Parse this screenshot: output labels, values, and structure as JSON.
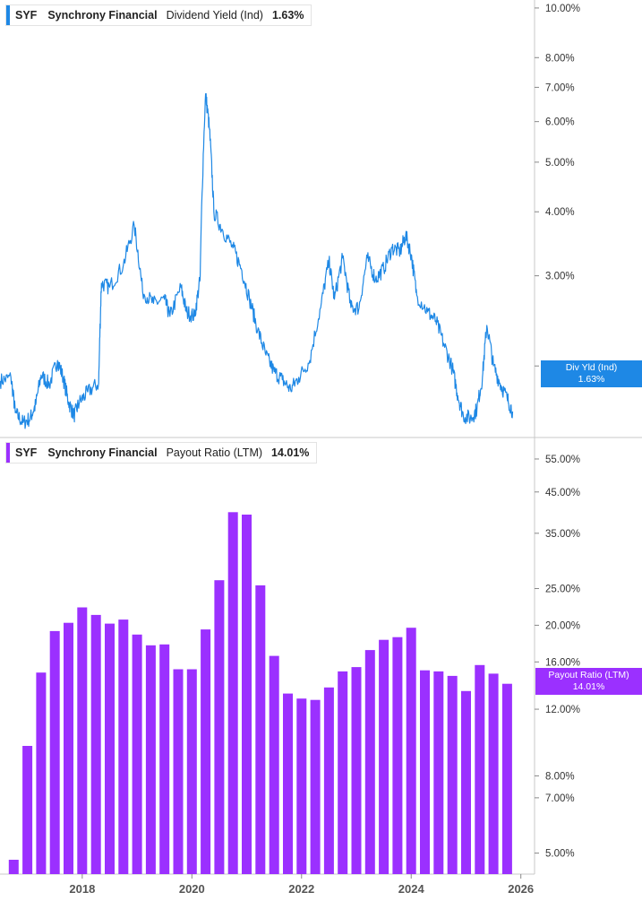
{
  "colors": {
    "line": "#1E88E5",
    "bar": "#9B30FF",
    "divider": "#c8c8c8",
    "axis_text": "#333333",
    "tick": "#888888"
  },
  "legend_top": {
    "ticker": "SYF",
    "name": "Synchrony Financial",
    "metric": "Dividend Yield (Ind)",
    "value": "1.63%"
  },
  "legend_bottom": {
    "ticker": "SYF",
    "name": "Synchrony Financial",
    "metric": "Payout Ratio (LTM)",
    "value": "14.01%"
  },
  "flag_top": {
    "label": "Div Yld (Ind)",
    "value": "1.63%"
  },
  "flag_bottom": {
    "label": "Payout Ratio (LTM)",
    "value": "14.01%"
  },
  "chart_data": [
    {
      "type": "line",
      "scale": "log",
      "y_tick_labels": [
        "10.00%",
        "8.00%",
        "7.00%",
        "6.00%",
        "5.00%",
        "4.00%",
        "3.00%",
        "2.00%"
      ],
      "y_ticks": [
        10,
        8,
        7,
        6,
        5,
        4,
        3,
        2
      ],
      "ylim": [
        1.45,
        10.2
      ],
      "x_range": [
        2016.5,
        2026.25
      ],
      "series": [
        {
          "name": "Dividend Yield (Ind)",
          "points": [
            [
              2016.5,
              1.87
            ],
            [
              2016.7,
              1.9
            ],
            [
              2016.78,
              1.62
            ],
            [
              2016.92,
              1.55
            ],
            [
              2017.05,
              1.58
            ],
            [
              2017.15,
              1.68
            ],
            [
              2017.25,
              1.92
            ],
            [
              2017.4,
              1.84
            ],
            [
              2017.55,
              2.05
            ],
            [
              2017.65,
              1.9
            ],
            [
              2017.75,
              1.7
            ],
            [
              2017.85,
              1.6
            ],
            [
              2017.95,
              1.7
            ],
            [
              2018.1,
              1.78
            ],
            [
              2018.3,
              1.85
            ],
            [
              2018.35,
              2.9
            ],
            [
              2018.5,
              2.85
            ],
            [
              2018.75,
              3.15
            ],
            [
              2018.95,
              3.75
            ],
            [
              2019.1,
              2.8
            ],
            [
              2019.3,
              2.65
            ],
            [
              2019.5,
              2.7
            ],
            [
              2019.6,
              2.5
            ],
            [
              2019.8,
              2.85
            ],
            [
              2019.9,
              2.55
            ],
            [
              2020.05,
              2.5
            ],
            [
              2020.15,
              2.95
            ],
            [
              2020.25,
              6.8
            ],
            [
              2020.32,
              5.8
            ],
            [
              2020.4,
              4.0
            ],
            [
              2020.55,
              3.7
            ],
            [
              2020.75,
              3.4
            ],
            [
              2020.9,
              3.1
            ],
            [
              2021.05,
              2.7
            ],
            [
              2021.2,
              2.35
            ],
            [
              2021.35,
              2.1
            ],
            [
              2021.5,
              1.95
            ],
            [
              2021.65,
              1.88
            ],
            [
              2021.8,
              1.8
            ],
            [
              2021.95,
              1.9
            ],
            [
              2022.15,
              2.05
            ],
            [
              2022.35,
              2.6
            ],
            [
              2022.5,
              3.2
            ],
            [
              2022.6,
              2.7
            ],
            [
              2022.75,
              3.25
            ],
            [
              2022.9,
              2.6
            ],
            [
              2023.05,
              2.6
            ],
            [
              2023.2,
              3.25
            ],
            [
              2023.35,
              2.95
            ],
            [
              2023.5,
              3.1
            ],
            [
              2023.65,
              3.4
            ],
            [
              2023.8,
              3.35
            ],
            [
              2023.9,
              3.6
            ],
            [
              2024.0,
              3.3
            ],
            [
              2024.1,
              2.75
            ],
            [
              2024.3,
              2.55
            ],
            [
              2024.45,
              2.45
            ],
            [
              2024.6,
              2.2
            ],
            [
              2024.75,
              1.98
            ],
            [
              2024.85,
              1.75
            ],
            [
              2024.95,
              1.6
            ],
            [
              2025.1,
              1.58
            ],
            [
              2025.2,
              1.65
            ],
            [
              2025.3,
              1.9
            ],
            [
              2025.38,
              2.4
            ],
            [
              2025.5,
              2.0
            ],
            [
              2025.62,
              1.85
            ],
            [
              2025.75,
              1.73
            ],
            [
              2025.85,
              1.63
            ]
          ]
        }
      ]
    },
    {
      "type": "bar",
      "scale": "log",
      "y_tick_labels": [
        "55.00%",
        "45.00%",
        "35.00%",
        "25.00%",
        "20.00%",
        "16.00%",
        "12.00%",
        "8.00%",
        "7.00%",
        "5.00%"
      ],
      "y_ticks": [
        55,
        45,
        35,
        25,
        20,
        16,
        12,
        8,
        7,
        5
      ],
      "ylim": [
        4.4,
        62
      ],
      "x_tick_labels": [
        "2018",
        "2020",
        "2022",
        "2024",
        "2026"
      ],
      "x_ticks": [
        2018,
        2020,
        2022,
        2024,
        2026
      ],
      "x_range": [
        2016.5,
        2026.25
      ],
      "series": [
        {
          "name": "Payout Ratio (LTM)",
          "x": [
            2016.75,
            2017.0,
            2017.25,
            2017.5,
            2017.75,
            2018.0,
            2018.25,
            2018.5,
            2018.75,
            2019.0,
            2019.25,
            2019.5,
            2019.75,
            2020.0,
            2020.25,
            2020.5,
            2020.75,
            2021.0,
            2021.25,
            2021.5,
            2021.75,
            2022.0,
            2022.25,
            2022.5,
            2022.75,
            2023.0,
            2023.25,
            2023.5,
            2023.75,
            2024.0,
            2024.25,
            2024.5,
            2024.75,
            2025.0,
            2025.25,
            2025.5,
            2025.75
          ],
          "values": [
            4.8,
            9.6,
            15.0,
            19.3,
            20.3,
            22.3,
            21.3,
            20.2,
            20.7,
            18.9,
            17.7,
            17.8,
            15.3,
            15.3,
            19.5,
            26.3,
            39.8,
            39.2,
            25.5,
            16.6,
            13.2,
            12.8,
            12.7,
            13.7,
            15.1,
            15.5,
            17.2,
            18.3,
            18.6,
            19.7,
            15.2,
            15.1,
            14.7,
            13.4,
            15.7,
            14.9,
            14.01
          ]
        }
      ]
    }
  ]
}
